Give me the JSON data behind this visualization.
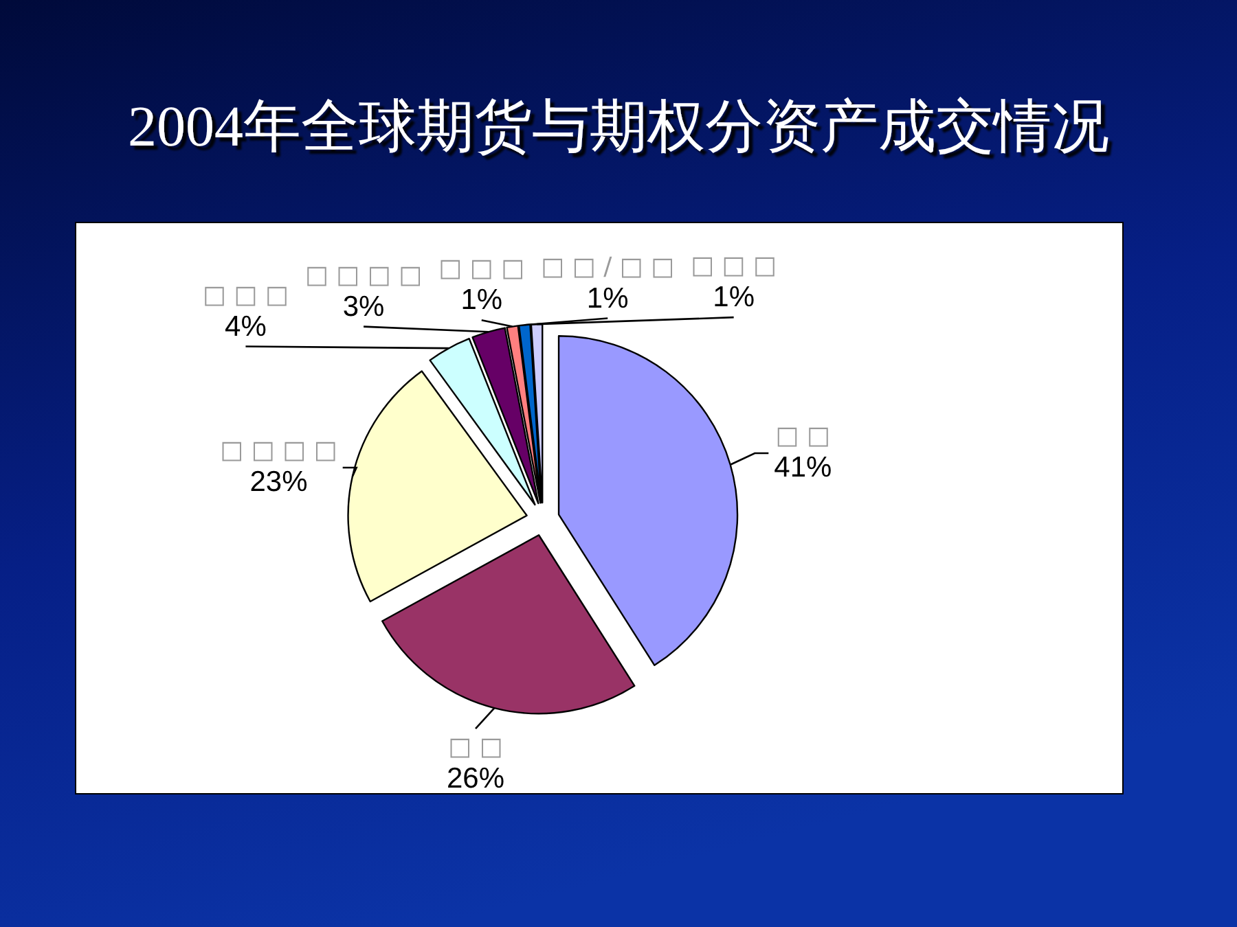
{
  "chart_data": {
    "type": "pie",
    "title": "2004年全球期货与期权分资产成交情况",
    "categories": [
      "□ □",
      "□ □",
      "□ □ □ □",
      "□ □ □",
      "□ □ □ □",
      "□ □ □",
      "□ □ / □ □",
      "□ □ □"
    ],
    "values": [
      41,
      26,
      23,
      4,
      3,
      1,
      1,
      1
    ],
    "colors": [
      "#9999ff",
      "#993366",
      "#ffffcc",
      "#ccffff",
      "#660066",
      "#ff8080",
      "#0066cc",
      "#ccccff"
    ],
    "value_labels": [
      "41%",
      "26%",
      "23%",
      "4%",
      "3%",
      "1%",
      "1%",
      "1%"
    ]
  }
}
